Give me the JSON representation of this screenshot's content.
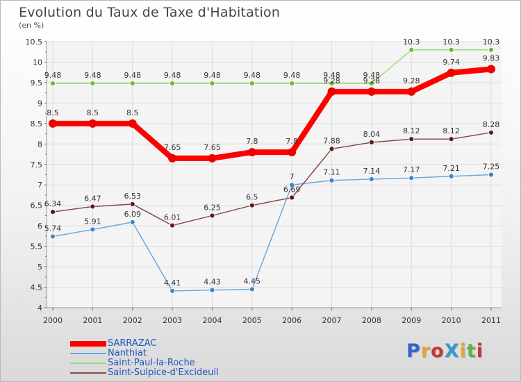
{
  "title": "Evolution du Taux de Taxe d'Habitation",
  "unit_label": "(en %)",
  "brand": {
    "text": "ProXiti",
    "colors": [
      "#3366cc",
      "#e8a33d",
      "#cc3333",
      "#3399cc",
      "#e8a33d",
      "#66b045",
      "#cc3333"
    ]
  },
  "chart_data": {
    "type": "line",
    "x": [
      "2000",
      "2001",
      "2002",
      "2003",
      "2004",
      "2005",
      "2006",
      "2007",
      "2008",
      "2009",
      "2010",
      "2011"
    ],
    "ylim": [
      4,
      10.5
    ],
    "yticks": [
      "4",
      "4.5",
      "5",
      "5.5",
      "6",
      "6.5",
      "7",
      "7.5",
      "8",
      "8.5",
      "9",
      "9.5",
      "10",
      "10.5"
    ],
    "grid": true,
    "legend_position": "bottom-left",
    "series": [
      {
        "name": "SARRAZAC",
        "color": "#ff0000",
        "marker": "#ee0000",
        "line_width": 8,
        "marker_r": 6,
        "values": [
          8.5,
          8.5,
          8.5,
          7.65,
          7.65,
          7.8,
          7.8,
          9.28,
          9.28,
          9.28,
          9.74,
          9.83
        ],
        "labels": [
          "8.5",
          "8.5",
          "8.5",
          "7.65",
          "7.65",
          "7.8",
          "7.8",
          "9.28",
          "9.28",
          "9.28",
          "9.74",
          "9.83"
        ]
      },
      {
        "name": "Nanthiat",
        "color": "#6fa8dc",
        "marker": "#3d85c6",
        "line_width": 1.5,
        "marker_r": 3.5,
        "values": [
          5.74,
          5.91,
          6.09,
          4.41,
          4.43,
          4.45,
          7,
          7.11,
          7.14,
          7.17,
          7.21,
          7.25
        ],
        "labels": [
          "5.74",
          "5.91",
          "6.09",
          "4.41",
          "4.43",
          "4.45",
          "7",
          "7.11",
          "7.14",
          "7.17",
          "7.21",
          "7.25"
        ]
      },
      {
        "name": "Saint-Paul-la-Roche",
        "color": "#99dd77",
        "marker": "#66bb33",
        "line_width": 1.5,
        "marker_r": 3.5,
        "values": [
          9.48,
          9.48,
          9.48,
          9.48,
          9.48,
          9.48,
          9.48,
          9.48,
          9.48,
          10.3,
          10.3,
          10.3
        ],
        "labels": [
          "9.48",
          "9.48",
          "9.48",
          "9.48",
          "9.48",
          "9.48",
          "9.48",
          "9.48",
          "9.48",
          "10.3",
          "10.3",
          "10.3"
        ]
      },
      {
        "name": "Saint-Sulpice-d'Excideuil",
        "color": "#8b4a4a",
        "marker": "#5c1a1a",
        "line_width": 1.5,
        "marker_r": 3.5,
        "values": [
          6.34,
          6.47,
          6.53,
          6.01,
          6.25,
          6.5,
          6.69,
          7.88,
          8.04,
          8.12,
          8.12,
          8.28
        ],
        "labels": [
          "6.34",
          "6.47",
          "6.53",
          "6.01",
          "6.25",
          "6.5",
          "6.69",
          "7.88",
          "8.04",
          "8.12",
          "8.12",
          "8.28"
        ]
      }
    ]
  }
}
